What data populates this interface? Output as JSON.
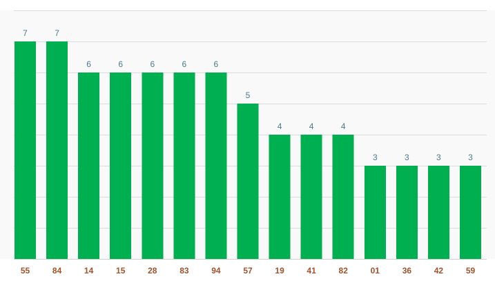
{
  "chart_data": {
    "type": "bar",
    "categories": [
      "55",
      "84",
      "14",
      "15",
      "28",
      "83",
      "94",
      "57",
      "19",
      "41",
      "82",
      "01",
      "36",
      "42",
      "59"
    ],
    "values": [
      7,
      7,
      6,
      6,
      6,
      6,
      6,
      5,
      4,
      4,
      4,
      3,
      3,
      3,
      3
    ],
    "ylim": [
      0,
      8
    ],
    "grid": true,
    "title": "",
    "xlabel": "",
    "ylabel": ""
  },
  "colors": {
    "bar": "#00b050",
    "value_label": "#4a7a8c",
    "category_label": "#a0522d",
    "plot_background": "#f9f9f9"
  }
}
